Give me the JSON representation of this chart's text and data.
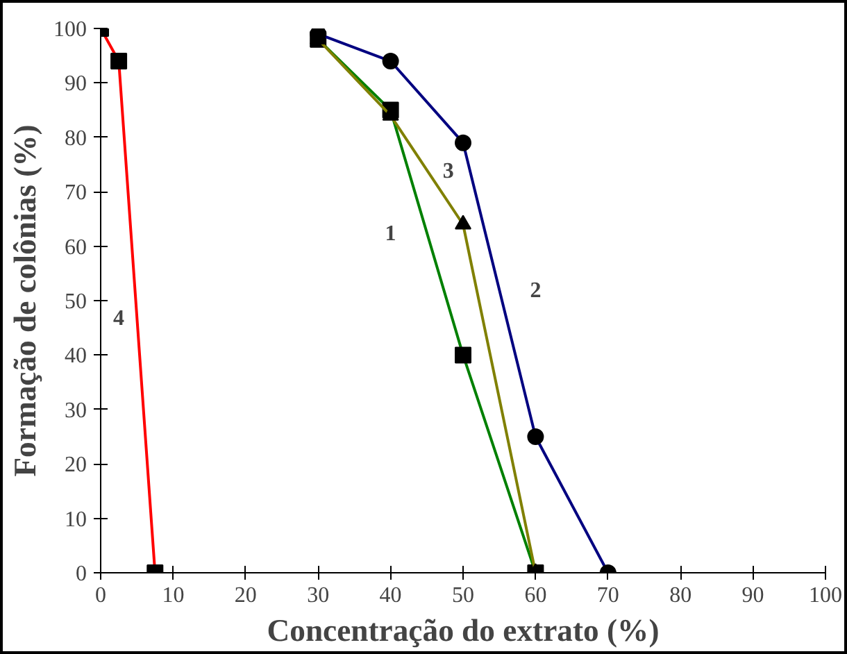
{
  "chart_data": {
    "type": "line",
    "xlabel": "Concentração do extrato (%)",
    "ylabel": "Formação de colônias (%)",
    "xlim": [
      0,
      100
    ],
    "ylim": [
      0,
      100
    ],
    "xticks": [
      0,
      10,
      20,
      30,
      40,
      50,
      60,
      70,
      80,
      90,
      100
    ],
    "yticks": [
      0,
      10,
      20,
      30,
      40,
      50,
      60,
      70,
      80,
      90,
      100
    ],
    "grid": false,
    "series": [
      {
        "name": "1",
        "color": "#008000",
        "marker": "square",
        "x": [
          30,
          40,
          50,
          60
        ],
        "values": [
          98,
          85,
          40,
          0
        ]
      },
      {
        "name": "2",
        "color": "#000080",
        "marker": "circle",
        "x": [
          30,
          40,
          50,
          60,
          70
        ],
        "values": [
          99,
          94,
          79,
          25,
          0
        ]
      },
      {
        "name": "3",
        "color": "#808000",
        "marker": "triangle",
        "x": [
          30,
          40,
          50,
          60
        ],
        "values": [
          98,
          84,
          64,
          0
        ]
      },
      {
        "name": "4",
        "color": "#ff0000",
        "marker": "square",
        "x": [
          0,
          2.5,
          7.5
        ],
        "values": [
          100,
          94,
          0
        ]
      }
    ]
  }
}
